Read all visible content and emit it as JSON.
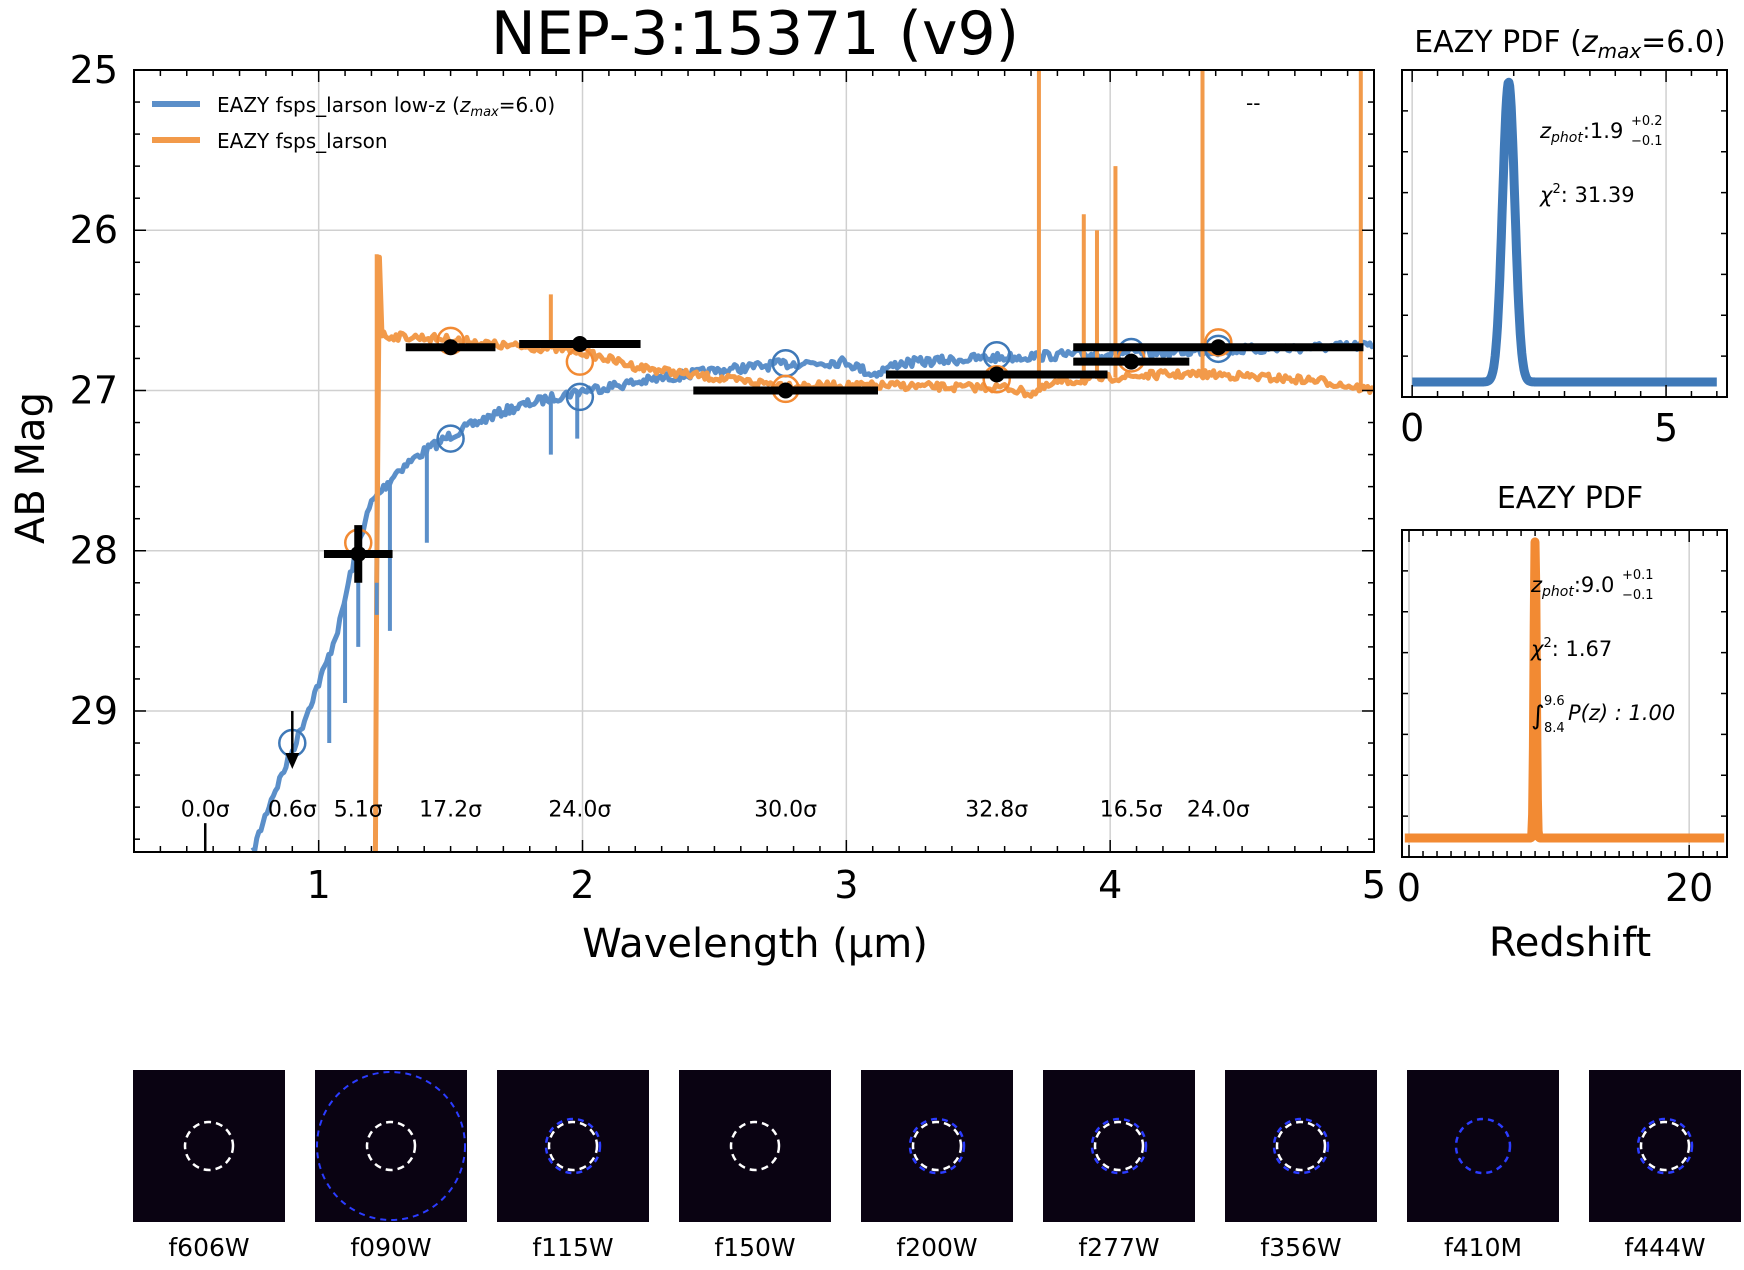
{
  "chart_data": [
    {
      "type": "line",
      "title": "NEP-3:15371 (v9)",
      "xlabel": "Wavelength (μm)",
      "ylabel": "AB Mag",
      "xlim": [
        0.3,
        5.0
      ],
      "ylim": [
        29.88,
        25.0
      ],
      "xticks": [
        "1",
        "2",
        "3",
        "4",
        "5"
      ],
      "yticks": [
        "25",
        "26",
        "27",
        "28",
        "29"
      ],
      "grid": true,
      "legend_position": "top-left",
      "legend": [
        {
          "label": "EAZY fsps_larson low-z (",
          "math": "z",
          "sub": "max",
          "suffix": "=6.0)",
          "color": "#5b8fc9"
        },
        {
          "label": "EAZY fsps_larson",
          "color": "#f29a4a"
        }
      ],
      "corner_note": "--",
      "series": [
        {
          "name": "EAZY fsps_larson low-z",
          "color": "#5b8fc9",
          "x": [
            0.75,
            0.82,
            0.9,
            0.97,
            1.03,
            1.08,
            1.12,
            1.16,
            1.2,
            1.3,
            1.4,
            1.5,
            1.6,
            1.7,
            1.8,
            1.9,
            2.0,
            2.2,
            2.4,
            2.6,
            2.8,
            3.0,
            3.1,
            3.2,
            3.5,
            3.8,
            4.0,
            4.2,
            4.4,
            4.6,
            4.8,
            5.0
          ],
          "y": [
            29.88,
            29.55,
            29.25,
            28.95,
            28.7,
            28.45,
            28.15,
            27.9,
            27.7,
            27.5,
            27.38,
            27.28,
            27.2,
            27.13,
            27.08,
            27.04,
            27.0,
            26.95,
            26.9,
            26.86,
            26.83,
            26.82,
            26.9,
            26.83,
            26.8,
            26.78,
            26.77,
            26.76,
            26.75,
            26.74,
            26.73,
            26.72
          ]
        },
        {
          "name": "EAZY fsps_larson",
          "color": "#f29a4a",
          "x": [
            1.2,
            1.215,
            1.22,
            1.23,
            1.24,
            1.26,
            1.4,
            1.5,
            1.6,
            1.7,
            1.8,
            1.9,
            2.0,
            2.2,
            2.4,
            2.6,
            2.8,
            3.0,
            3.2,
            3.4,
            3.6,
            3.7,
            3.8,
            4.0,
            4.2,
            4.4,
            4.6,
            4.8,
            5.0
          ],
          "y": [
            29.9,
            29.9,
            28.2,
            26.15,
            26.65,
            26.66,
            26.67,
            26.68,
            26.7,
            26.72,
            26.73,
            26.74,
            26.76,
            26.85,
            26.9,
            26.94,
            26.97,
            26.97,
            26.97,
            26.98,
            26.98,
            27.02,
            26.95,
            26.92,
            26.9,
            26.9,
            26.92,
            26.94,
            27.0
          ]
        }
      ],
      "emission_spikes": [
        {
          "x": 1.22,
          "to": 26.15
        },
        {
          "x": 1.88,
          "to": 26.4
        },
        {
          "x": 3.73,
          "to": 25.0
        },
        {
          "x": 3.9,
          "to": 25.9
        },
        {
          "x": 3.95,
          "to": 26.0
        },
        {
          "x": 4.02,
          "to": 25.6
        },
        {
          "x": 4.35,
          "to": 25.0
        },
        {
          "x": 4.95,
          "to": 25.0
        }
      ],
      "photometry": [
        {
          "x": 0.57,
          "y": 29.7,
          "xerr": 0.0,
          "limit": true,
          "sigma": "0.0σ"
        },
        {
          "x": 0.9,
          "y": 29.0,
          "xerr": 0.0,
          "limit": true,
          "sigma": "0.6σ"
        },
        {
          "x": 1.15,
          "y": 28.02,
          "xerr": 0.13,
          "yerr": 0.18,
          "sigma": "5.1σ"
        },
        {
          "x": 1.5,
          "y": 26.73,
          "xerr": 0.17,
          "sigma": "17.2σ"
        },
        {
          "x": 1.99,
          "y": 26.71,
          "xerr": 0.23,
          "sigma": "24.0σ"
        },
        {
          "x": 2.77,
          "y": 27.0,
          "xerr": 0.35,
          "sigma": "30.0σ"
        },
        {
          "x": 3.57,
          "y": 26.9,
          "xerr": 0.42,
          "sigma": "32.8σ"
        },
        {
          "x": 4.08,
          "y": 26.82,
          "xerr": 0.22,
          "sigma": "16.5σ"
        },
        {
          "x": 4.41,
          "y": 26.73,
          "xerr": 0.55,
          "sigma": "24.0σ"
        }
      ],
      "model_points_lowz": [
        {
          "x": 0.9,
          "y": 29.2
        },
        {
          "x": 1.5,
          "y": 27.3
        },
        {
          "x": 1.99,
          "y": 27.04
        },
        {
          "x": 2.77,
          "y": 26.83
        },
        {
          "x": 3.57,
          "y": 26.78
        },
        {
          "x": 4.08,
          "y": 26.76
        },
        {
          "x": 4.41,
          "y": 26.74
        }
      ],
      "model_points_highz": [
        {
          "x": 1.15,
          "y": 27.95
        },
        {
          "x": 1.5,
          "y": 26.69
        },
        {
          "x": 1.99,
          "y": 26.82
        },
        {
          "x": 2.77,
          "y": 26.99
        },
        {
          "x": 3.57,
          "y": 26.93
        },
        {
          "x": 4.08,
          "y": 26.8
        },
        {
          "x": 4.41,
          "y": 26.7
        }
      ]
    },
    {
      "type": "line",
      "title_prefix": "EAZY PDF (",
      "title_math": "z",
      "title_sub": "max",
      "title_suffix": "=6.0)",
      "xlim": [
        -0.2,
        6.2
      ],
      "xticks": [
        "0",
        "5"
      ],
      "color": "#3f79b8",
      "peak_z": 1.9,
      "peak_width": 0.12,
      "zphot_label": "z",
      "zphot_sub": "phot",
      "zphot_value": ":1.9",
      "zphot_upper": "+0.2",
      "zphot_lower": "−0.1",
      "chi2_value": ": 31.39"
    },
    {
      "type": "line",
      "title": "EAZY PDF",
      "xlabel": "Redshift",
      "xlim": [
        -0.5,
        22.7
      ],
      "xticks": [
        "0",
        "20"
      ],
      "color": "#f28a33",
      "peak_z": 9.0,
      "peak_width": 0.08,
      "zphot_label": "z",
      "zphot_sub": "phot",
      "zphot_value": ":9.0",
      "zphot_upper": "+0.1",
      "zphot_lower": "−0.1",
      "chi2_value": ": 1.67",
      "integral_upper": "9.6",
      "integral_lower": "8.4",
      "integral_text": "P(z) : 1.00"
    }
  ],
  "cutouts": [
    {
      "filter": "f606W",
      "blob": 0.0,
      "blue": false
    },
    {
      "filter": "f090W",
      "blob": 0.15,
      "blue": true,
      "big": true
    },
    {
      "filter": "f115W",
      "blob": 0.45,
      "blue": true
    },
    {
      "filter": "f150W",
      "blob": 0.8,
      "blue": false
    },
    {
      "filter": "f200W",
      "blob": 0.85,
      "blue": true
    },
    {
      "filter": "f277W",
      "blob": 0.95,
      "blue": true
    },
    {
      "filter": "f356W",
      "blob": 1.0,
      "blue": true
    },
    {
      "filter": "f410M",
      "blob": 0.9,
      "blue": true
    },
    {
      "filter": "f444W",
      "blob": 0.9,
      "blue": true
    }
  ]
}
